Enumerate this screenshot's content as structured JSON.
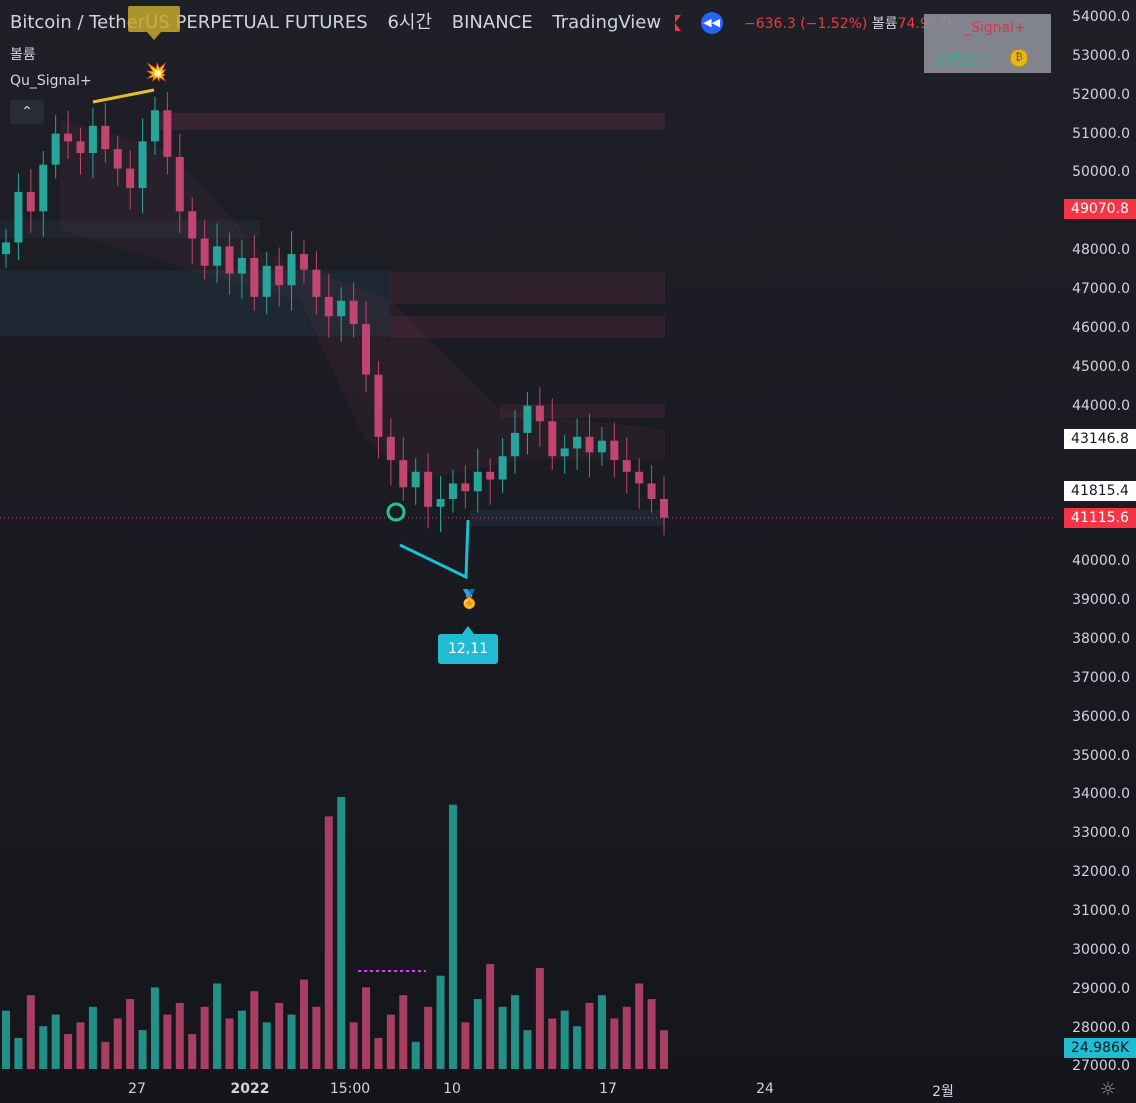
{
  "header": {
    "symbol": "Bitcoin / TetherUS PERPETUAL FUTURES",
    "interval": "6시간",
    "exchange": "BINANCE",
    "source": "TradingView",
    "change": "−636.3 (−1.52%)",
    "volume_label": "볼륨",
    "volume_value": "74.957K"
  },
  "pane": {
    "volume_title": "볼륨",
    "indicator_title": "Qu_Signal+",
    "collapse_glyph": "⌃"
  },
  "signal_panel": {
    "title": "_Signal+",
    "mode": "코인모드",
    "coin_icon": "coin-icon"
  },
  "annotations": {
    "divergence_label": "12,11",
    "explosion_icon": "explosion-icon",
    "medal_icon": "medal-icon",
    "circle_marker": "circle-marker"
  },
  "colors": {
    "up": "#26a69a",
    "down": "#c2456f",
    "accent": "#2962ff",
    "last_price": "#f23645",
    "diverge_line": "#1fbcd2",
    "top_line": "#e5c02e"
  },
  "y_axis": {
    "labels": [
      "54000.0",
      "53000.0",
      "52000.0",
      "51000.0",
      "50000.0",
      "49070.8",
      "48000.0",
      "47000.0",
      "46000.0",
      "45000.0",
      "44000.0",
      "43146.8",
      "41815.4",
      "41115.6",
      "40000.0",
      "39000.0",
      "38000.0",
      "37000.0",
      "36000.0",
      "35000.0",
      "34000.0",
      "33000.0",
      "32000.0",
      "31000.0",
      "30000.0",
      "29000.0",
      "28000.0",
      "24.986K",
      "27000.0"
    ],
    "tags": {
      "t49070": "49070.8",
      "t43146": "43146.8",
      "t41815": "41815.4",
      "t41115": "41115.6",
      "tvol": "24.986K"
    }
  },
  "x_axis": {
    "labels": [
      "27",
      "2022",
      "15:00",
      "10",
      "17",
      "24",
      "2월"
    ]
  },
  "chart_data": {
    "type": "candlestick",
    "symbol": "BTCUSDT.P",
    "ylim": [
      27000,
      54000
    ],
    "last_price": 41115.6,
    "close_series": [
      48200,
      49500,
      49000,
      50200,
      51000,
      50800,
      50500,
      51200,
      50600,
      50100,
      49600,
      50800,
      51600,
      50400,
      49000,
      48300,
      47600,
      48100,
      47400,
      47800,
      46800,
      47600,
      47100,
      47900,
      47500,
      46800,
      46300,
      46700,
      46100,
      44800,
      43200,
      42600,
      41900,
      42300,
      41400,
      41600,
      42000,
      41800,
      42300,
      42100,
      42700,
      43300,
      44000,
      43600,
      42700,
      42900,
      43200,
      42800,
      43100,
      42600,
      42300,
      42000,
      41600,
      41115.6
    ],
    "volume_series": [
      28500,
      27800,
      28900,
      28100,
      28400,
      27900,
      28200,
      28600,
      27700,
      28300,
      28800,
      28000,
      29100,
      28400,
      28700,
      27900,
      28600,
      29200,
      28300,
      28500,
      29000,
      28200,
      28700,
      28400,
      29300,
      28600,
      33500,
      34000,
      28200,
      29100,
      27800,
      28400,
      28900,
      27700,
      28600,
      29400,
      33800,
      28200,
      28800,
      29700,
      28600,
      28900,
      28000,
      29600,
      28300,
      28500,
      28100,
      28700,
      28900,
      28300,
      28600,
      29200,
      28800,
      28000
    ],
    "volume_scale": "24.986K"
  }
}
